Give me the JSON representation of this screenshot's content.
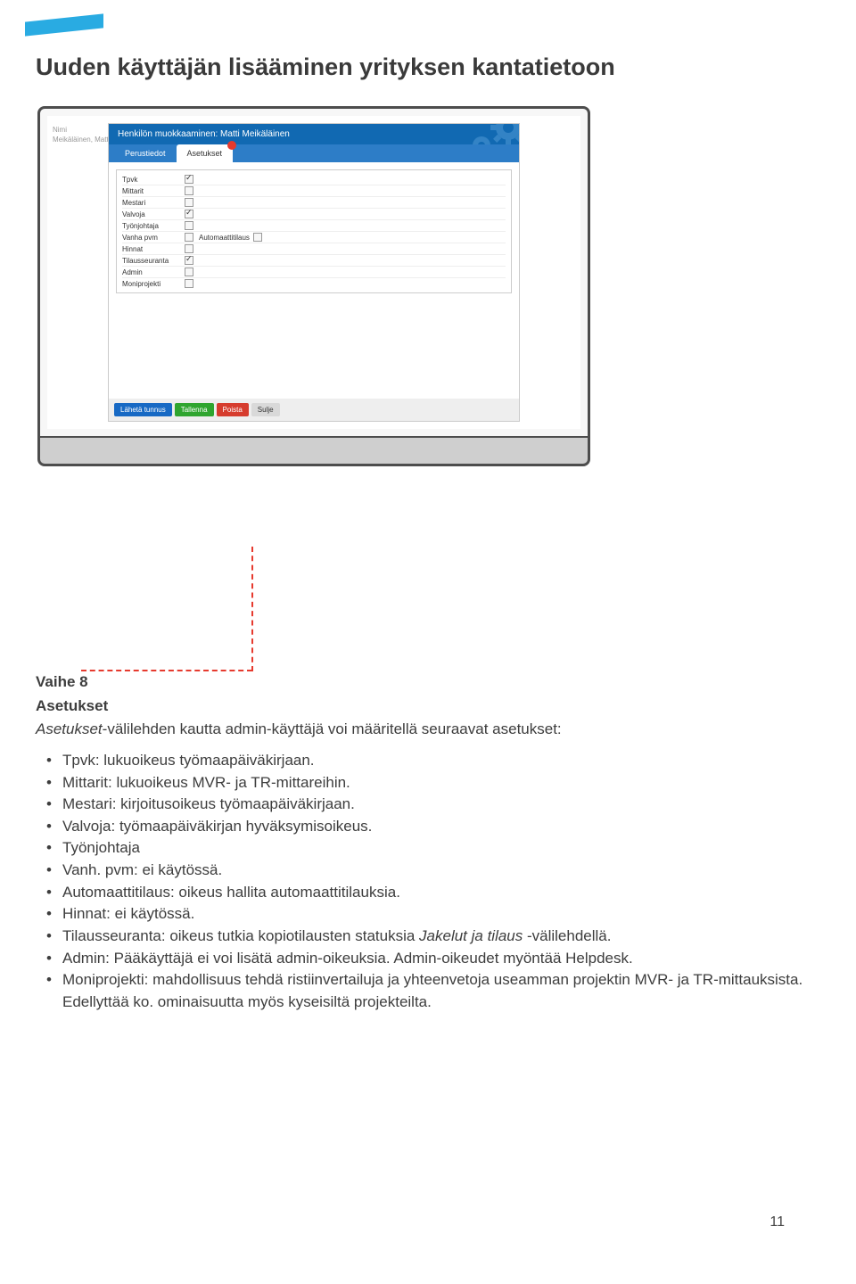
{
  "accent_color": "#29abe2",
  "title": "Uuden käyttäjän lisääminen yrityksen kantatietoon",
  "modal": {
    "header": "Henkilön muokkaaminen: Matti Meikäläinen",
    "tabs": [
      "Perustiedot",
      "Asetukset"
    ],
    "active_tab": 1,
    "checklist": [
      {
        "label": "Tpvk",
        "checked": true
      },
      {
        "label": "Mittarit",
        "checked": false
      },
      {
        "label": "Mestari",
        "checked": false
      },
      {
        "label": "Valvoja",
        "checked": true
      },
      {
        "label": "Työnjohtaja",
        "checked": false
      },
      {
        "label": "Vanha pvm",
        "checked": false,
        "extra_label": "Automaattitilaus",
        "extra_checked": false
      },
      {
        "label": "Hinnat",
        "checked": false
      },
      {
        "label": "Tilausseuranta",
        "checked": true
      },
      {
        "label": "Admin",
        "checked": false
      },
      {
        "label": "Moniprojekti",
        "checked": false
      }
    ],
    "footer_buttons": [
      {
        "label": "Lähetä tunnus",
        "style": "blue"
      },
      {
        "label": "Tallenna",
        "style": "green"
      },
      {
        "label": "Poista",
        "style": "red"
      },
      {
        "label": "Sulje",
        "style": "grey"
      }
    ]
  },
  "bg_left_lines": [
    "  ",
    "Nimi",
    "Meikäläinen, Matti"
  ],
  "bg_right": " ",
  "step_heading": "Vaihe 8",
  "step_sub": "Asetukset",
  "step_intro_prefix_italic": "Asetukset",
  "step_intro_rest": "-välilehden kautta admin-käyttäjä voi määritellä seuraavat asetukset:",
  "bullets": [
    "Tpvk: lukuoikeus työmaapäiväkirjaan.",
    "Mittarit: lukuoikeus MVR- ja TR-mittareihin.",
    "Mestari: kirjoitusoikeus työmaapäiväkirjaan.",
    "Valvoja: työmaapäiväkirjan hyväksymisoikeus.",
    "Työnjohtaja",
    "Vanh. pvm: ei käytössä.",
    "Automaattitilaus: oikeus hallita automaattitilauksia.",
    "Hinnat: ei käytössä.",
    {
      "pre": "Tilausseuranta: oikeus tutkia kopiotilausten statuksia ",
      "em": "Jakelut ja tilaus",
      "post": " -välilehdellä."
    },
    "Admin: Pääkäyttäjä ei voi lisätä admin-oikeuksia. Admin-oikeudet myöntää Helpdesk.",
    "Moniprojekti: mahdollisuus tehdä ristiinvertailuja ja yhteenvetoja useamman projektin MVR- ja TR-mittauksista. Edellyttää ko. ominaisuutta myös kyseisiltä projekteilta."
  ],
  "page_number": "11"
}
